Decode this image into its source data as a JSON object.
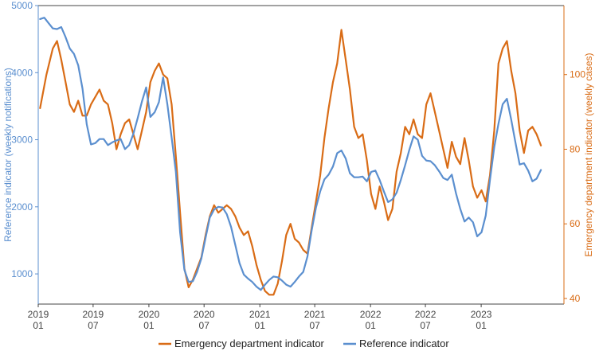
{
  "chart_data": {
    "type": "line",
    "colors": {
      "reference": "#5b8fcf",
      "emergency": "#d96c16",
      "axis": "#444444"
    },
    "left_axis": {
      "label": "Reference indicator (weekly notifications)",
      "ylim": [
        550,
        5000
      ],
      "ticks": [
        1000,
        2000,
        3000,
        4000,
        5000
      ]
    },
    "right_axis": {
      "label": "Emergency department indicator (weekly cases)",
      "ylim": [
        38.5,
        118.5
      ],
      "ticks": [
        40,
        60,
        80,
        100
      ]
    },
    "x_axis": {
      "range": [
        "2019-01",
        "2023-10"
      ],
      "ticks": [
        {
          "date": "2019-01",
          "year": "2019",
          "month": "01"
        },
        {
          "date": "2019-07",
          "year": "2019",
          "month": "07"
        },
        {
          "date": "2020-01",
          "year": "2020",
          "month": "01"
        },
        {
          "date": "2020-07",
          "year": "2020",
          "month": "07"
        },
        {
          "date": "2021-01",
          "year": "2021",
          "month": "01"
        },
        {
          "date": "2021-07",
          "year": "2021",
          "month": "07"
        },
        {
          "date": "2022-01",
          "year": "2022",
          "month": "01"
        },
        {
          "date": "2022-07",
          "year": "2022",
          "month": "07"
        },
        {
          "date": "2023-01",
          "year": "2023",
          "month": "01"
        }
      ]
    },
    "legend": {
      "placement": "bottom"
    },
    "series": [
      {
        "name": "Emergency department indicator",
        "axis": "right",
        "points": [
          [
            "2019-01-07",
            91
          ],
          [
            "2019-01-28",
            100
          ],
          [
            "2019-02-18",
            107
          ],
          [
            "2019-03-04",
            109
          ],
          [
            "2019-03-18",
            104
          ],
          [
            "2019-04-01",
            98
          ],
          [
            "2019-04-15",
            92
          ],
          [
            "2019-04-29",
            90
          ],
          [
            "2019-05-13",
            93
          ],
          [
            "2019-05-27",
            89
          ],
          [
            "2019-06-10",
            89
          ],
          [
            "2019-06-24",
            92
          ],
          [
            "2019-07-08",
            94
          ],
          [
            "2019-07-22",
            96
          ],
          [
            "2019-08-05",
            93
          ],
          [
            "2019-08-19",
            92
          ],
          [
            "2019-09-02",
            87
          ],
          [
            "2019-09-16",
            80
          ],
          [
            "2019-09-30",
            84
          ],
          [
            "2019-10-14",
            87
          ],
          [
            "2019-10-28",
            88
          ],
          [
            "2019-11-11",
            84
          ],
          [
            "2019-11-25",
            80
          ],
          [
            "2019-12-09",
            85
          ],
          [
            "2019-12-23",
            90
          ],
          [
            "2020-01-06",
            98
          ],
          [
            "2020-01-20",
            101
          ],
          [
            "2020-02-03",
            103
          ],
          [
            "2020-02-17",
            100
          ],
          [
            "2020-03-02",
            99
          ],
          [
            "2020-03-16",
            92
          ],
          [
            "2020-03-30",
            78
          ],
          [
            "2020-04-13",
            63
          ],
          [
            "2020-04-27",
            48
          ],
          [
            "2020-05-11",
            43
          ],
          [
            "2020-05-25",
            45
          ],
          [
            "2020-06-08",
            48
          ],
          [
            "2020-06-22",
            51
          ],
          [
            "2020-07-06",
            57
          ],
          [
            "2020-07-20",
            62
          ],
          [
            "2020-08-03",
            65
          ],
          [
            "2020-08-17",
            63
          ],
          [
            "2020-08-31",
            64
          ],
          [
            "2020-09-14",
            65
          ],
          [
            "2020-09-28",
            64
          ],
          [
            "2020-10-12",
            62
          ],
          [
            "2020-10-26",
            59
          ],
          [
            "2020-11-09",
            57
          ],
          [
            "2020-11-23",
            58
          ],
          [
            "2020-12-07",
            54
          ],
          [
            "2020-12-21",
            49
          ],
          [
            "2021-01-04",
            45
          ],
          [
            "2021-01-18",
            42
          ],
          [
            "2021-02-01",
            41
          ],
          [
            "2021-02-15",
            41
          ],
          [
            "2021-03-01",
            44
          ],
          [
            "2021-03-15",
            50
          ],
          [
            "2021-03-29",
            57
          ],
          [
            "2021-04-12",
            60
          ],
          [
            "2021-04-26",
            56
          ],
          [
            "2021-05-10",
            55
          ],
          [
            "2021-05-24",
            53
          ],
          [
            "2021-06-07",
            52
          ],
          [
            "2021-06-21",
            59
          ],
          [
            "2021-07-05",
            66
          ],
          [
            "2021-07-19",
            73
          ],
          [
            "2021-08-02",
            83
          ],
          [
            "2021-08-16",
            91
          ],
          [
            "2021-08-30",
            98
          ],
          [
            "2021-09-13",
            103
          ],
          [
            "2021-09-27",
            112
          ],
          [
            "2021-10-11",
            104
          ],
          [
            "2021-10-25",
            96
          ],
          [
            "2021-11-08",
            86
          ],
          [
            "2021-11-22",
            83
          ],
          [
            "2021-12-06",
            84
          ],
          [
            "2021-12-20",
            77
          ],
          [
            "2022-01-03",
            68
          ],
          [
            "2022-01-17",
            64
          ],
          [
            "2022-01-31",
            70
          ],
          [
            "2022-02-14",
            66
          ],
          [
            "2022-02-28",
            61
          ],
          [
            "2022-03-14",
            64
          ],
          [
            "2022-03-28",
            74
          ],
          [
            "2022-04-11",
            79
          ],
          [
            "2022-04-25",
            86
          ],
          [
            "2022-05-09",
            84
          ],
          [
            "2022-05-23",
            88
          ],
          [
            "2022-06-06",
            84
          ],
          [
            "2022-06-20",
            83
          ],
          [
            "2022-07-04",
            92
          ],
          [
            "2022-07-18",
            95
          ],
          [
            "2022-08-01",
            90
          ],
          [
            "2022-08-15",
            85
          ],
          [
            "2022-08-29",
            80
          ],
          [
            "2022-09-12",
            75
          ],
          [
            "2022-09-26",
            82
          ],
          [
            "2022-10-10",
            78
          ],
          [
            "2022-10-24",
            76
          ],
          [
            "2022-11-07",
            83
          ],
          [
            "2022-11-21",
            77
          ],
          [
            "2022-12-05",
            70
          ],
          [
            "2022-12-19",
            67
          ],
          [
            "2023-01-02",
            69
          ],
          [
            "2023-01-16",
            66
          ],
          [
            "2023-01-30",
            73
          ],
          [
            "2023-02-13",
            85
          ],
          [
            "2023-02-27",
            103
          ],
          [
            "2023-03-13",
            107
          ],
          [
            "2023-03-27",
            109
          ],
          [
            "2023-04-10",
            101
          ],
          [
            "2023-04-24",
            95
          ],
          [
            "2023-05-08",
            85
          ],
          [
            "2023-05-22",
            79
          ],
          [
            "2023-06-05",
            85
          ],
          [
            "2023-06-19",
            86
          ],
          [
            "2023-07-03",
            84
          ],
          [
            "2023-07-17",
            81
          ]
        ]
      },
      {
        "name": "Reference indicator",
        "axis": "left",
        "points": [
          [
            "2019-01-07",
            4800
          ],
          [
            "2019-01-21",
            4820
          ],
          [
            "2019-02-04",
            4740
          ],
          [
            "2019-02-18",
            4660
          ],
          [
            "2019-03-04",
            4650
          ],
          [
            "2019-03-18",
            4680
          ],
          [
            "2019-04-01",
            4530
          ],
          [
            "2019-04-15",
            4360
          ],
          [
            "2019-04-29",
            4280
          ],
          [
            "2019-05-13",
            4110
          ],
          [
            "2019-05-27",
            3760
          ],
          [
            "2019-06-10",
            3230
          ],
          [
            "2019-06-24",
            2930
          ],
          [
            "2019-07-08",
            2950
          ],
          [
            "2019-07-22",
            3010
          ],
          [
            "2019-08-05",
            3010
          ],
          [
            "2019-08-19",
            2920
          ],
          [
            "2019-09-02",
            2960
          ],
          [
            "2019-09-16",
            2990
          ],
          [
            "2019-09-30",
            3010
          ],
          [
            "2019-10-14",
            2860
          ],
          [
            "2019-10-28",
            2920
          ],
          [
            "2019-11-11",
            3090
          ],
          [
            "2019-11-25",
            3320
          ],
          [
            "2019-12-09",
            3570
          ],
          [
            "2019-12-23",
            3780
          ],
          [
            "2020-01-06",
            3340
          ],
          [
            "2020-01-20",
            3410
          ],
          [
            "2020-02-03",
            3560
          ],
          [
            "2020-02-17",
            3930
          ],
          [
            "2020-03-02",
            3530
          ],
          [
            "2020-03-16",
            3030
          ],
          [
            "2020-03-30",
            2520
          ],
          [
            "2020-04-13",
            1620
          ],
          [
            "2020-04-27",
            1060
          ],
          [
            "2020-05-11",
            880
          ],
          [
            "2020-05-25",
            890
          ],
          [
            "2020-06-08",
            1030
          ],
          [
            "2020-06-22",
            1230
          ],
          [
            "2020-07-06",
            1540
          ],
          [
            "2020-07-20",
            1840
          ],
          [
            "2020-08-03",
            1960
          ],
          [
            "2020-08-17",
            2000
          ],
          [
            "2020-08-31",
            1990
          ],
          [
            "2020-09-14",
            1890
          ],
          [
            "2020-09-28",
            1700
          ],
          [
            "2020-10-12",
            1430
          ],
          [
            "2020-10-26",
            1160
          ],
          [
            "2020-11-09",
            990
          ],
          [
            "2020-11-23",
            930
          ],
          [
            "2020-12-07",
            880
          ],
          [
            "2020-12-21",
            810
          ],
          [
            "2021-01-04",
            760
          ],
          [
            "2021-01-18",
            840
          ],
          [
            "2021-02-01",
            910
          ],
          [
            "2021-02-15",
            960
          ],
          [
            "2021-03-01",
            950
          ],
          [
            "2021-03-15",
            900
          ],
          [
            "2021-03-29",
            840
          ],
          [
            "2021-04-12",
            810
          ],
          [
            "2021-04-26",
            880
          ],
          [
            "2021-05-10",
            960
          ],
          [
            "2021-05-24",
            1030
          ],
          [
            "2021-06-07",
            1260
          ],
          [
            "2021-06-21",
            1650
          ],
          [
            "2021-07-05",
            1990
          ],
          [
            "2021-07-19",
            2230
          ],
          [
            "2021-08-02",
            2410
          ],
          [
            "2021-08-16",
            2480
          ],
          [
            "2021-08-30",
            2600
          ],
          [
            "2021-09-13",
            2800
          ],
          [
            "2021-09-27",
            2840
          ],
          [
            "2021-10-11",
            2720
          ],
          [
            "2021-10-25",
            2500
          ],
          [
            "2021-11-08",
            2440
          ],
          [
            "2021-11-22",
            2440
          ],
          [
            "2021-12-06",
            2450
          ],
          [
            "2021-12-20",
            2380
          ],
          [
            "2022-01-03",
            2520
          ],
          [
            "2022-01-17",
            2540
          ],
          [
            "2022-01-31",
            2400
          ],
          [
            "2022-02-14",
            2230
          ],
          [
            "2022-02-28",
            2070
          ],
          [
            "2022-03-14",
            2110
          ],
          [
            "2022-03-28",
            2210
          ],
          [
            "2022-04-11",
            2400
          ],
          [
            "2022-04-25",
            2620
          ],
          [
            "2022-05-09",
            2850
          ],
          [
            "2022-05-23",
            3050
          ],
          [
            "2022-06-06",
            3000
          ],
          [
            "2022-06-20",
            2760
          ],
          [
            "2022-07-04",
            2690
          ],
          [
            "2022-07-18",
            2680
          ],
          [
            "2022-08-01",
            2620
          ],
          [
            "2022-08-15",
            2530
          ],
          [
            "2022-08-29",
            2430
          ],
          [
            "2022-09-12",
            2400
          ],
          [
            "2022-09-26",
            2480
          ],
          [
            "2022-10-10",
            2200
          ],
          [
            "2022-10-24",
            1970
          ],
          [
            "2022-11-07",
            1780
          ],
          [
            "2022-11-21",
            1840
          ],
          [
            "2022-12-05",
            1770
          ],
          [
            "2022-12-19",
            1560
          ],
          [
            "2023-01-02",
            1620
          ],
          [
            "2023-01-16",
            1870
          ],
          [
            "2023-01-30",
            2400
          ],
          [
            "2023-02-13",
            2890
          ],
          [
            "2023-02-27",
            3240
          ],
          [
            "2023-03-13",
            3530
          ],
          [
            "2023-03-27",
            3610
          ],
          [
            "2023-04-10",
            3300
          ],
          [
            "2023-04-24",
            2960
          ],
          [
            "2023-05-08",
            2630
          ],
          [
            "2023-05-22",
            2650
          ],
          [
            "2023-06-05",
            2540
          ],
          [
            "2023-06-19",
            2380
          ],
          [
            "2023-07-03",
            2420
          ],
          [
            "2023-07-17",
            2550
          ]
        ]
      }
    ]
  }
}
